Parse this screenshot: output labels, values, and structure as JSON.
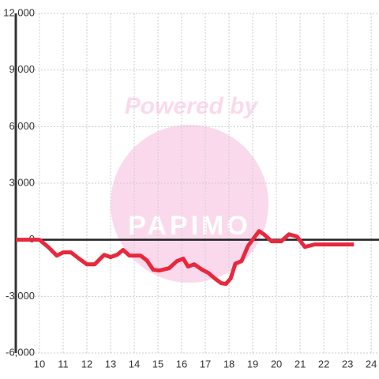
{
  "chart_data": {
    "type": "line",
    "watermark": {
      "text": "Powered by",
      "brand": "PAPIMO"
    },
    "x": [
      9.0,
      10.0,
      10.4,
      10.73,
      11.0,
      11.33,
      11.67,
      12.0,
      12.33,
      12.73,
      13.0,
      13.27,
      13.53,
      13.8,
      14.27,
      14.53,
      14.8,
      15.07,
      15.47,
      15.8,
      16.07,
      16.27,
      16.53,
      16.87,
      17.13,
      17.4,
      17.67,
      17.87,
      18.07,
      18.27,
      18.53,
      18.8,
      19.07,
      19.27,
      19.47,
      19.8,
      20.2,
      20.53,
      20.87,
      21.2,
      21.6,
      23.27
    ],
    "series": [
      {
        "color": "#e8283c",
        "values": [
          0,
          0,
          -420,
          -840,
          -670,
          -670,
          -1000,
          -1300,
          -1300,
          -800,
          -920,
          -800,
          -540,
          -840,
          -840,
          -1090,
          -1590,
          -1630,
          -1510,
          -1130,
          -1000,
          -1420,
          -1300,
          -1590,
          -1760,
          -2050,
          -2300,
          -2340,
          -2050,
          -1260,
          -1130,
          -330,
          130,
          460,
          290,
          -80,
          -80,
          290,
          170,
          -380,
          -250,
          -250
        ]
      }
    ],
    "xlim": [
      9,
      24.33
    ],
    "xticks": [
      10,
      11,
      12,
      13,
      14,
      15,
      16,
      17,
      18,
      19,
      20,
      21,
      22,
      23,
      24
    ],
    "ylim": [
      -6000,
      12000
    ],
    "yticks": [
      {
        "value": -6000,
        "label": "-6,000"
      },
      {
        "value": -3000,
        "label": "-3,000"
      },
      0,
      {
        "value": 3000,
        "label": "3,000"
      },
      {
        "value": 6000,
        "label": "6,000"
      },
      {
        "value": 9000,
        "label": "9,000"
      },
      {
        "value": 12000,
        "label": "12,000"
      }
    ],
    "grid": true
  }
}
